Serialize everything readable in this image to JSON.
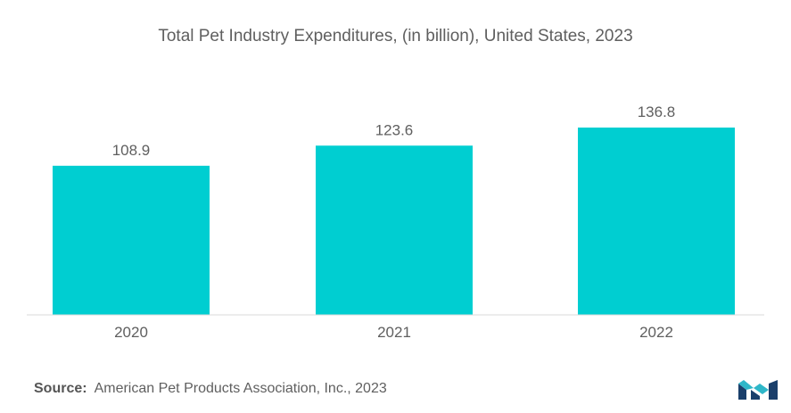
{
  "chart_data": {
    "type": "bar",
    "title": "Total Pet Industry Expenditures, (in billion), United States, 2023",
    "categories": [
      "2020",
      "2021",
      "2022"
    ],
    "values": [
      108.9,
      123.6,
      136.8
    ],
    "value_labels": [
      "108.9",
      "123.6",
      "136.8"
    ],
    "xlabel": "",
    "ylabel": "",
    "ylim": [
      0,
      136.8
    ],
    "grid": false,
    "legend": "none",
    "bar_color": "#00ced1",
    "text_color": "#5f5f5f"
  },
  "source": {
    "label": "Source:",
    "text": "American Pet Products Association, Inc., 2023"
  },
  "logo": {
    "icon": "mordor-intelligence-logo-icon",
    "colors": [
      "#1a3f6b",
      "#2fb7c9"
    ]
  }
}
